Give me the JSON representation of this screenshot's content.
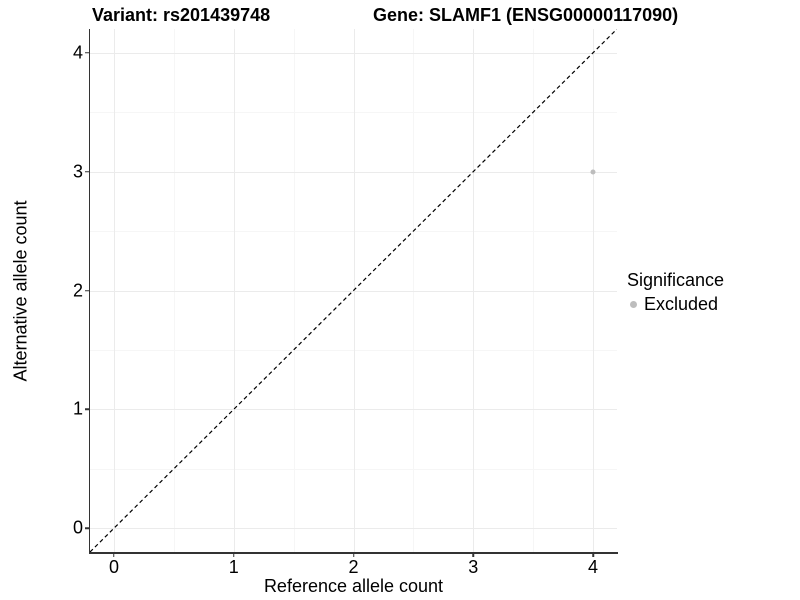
{
  "titles": {
    "variant": "Variant: rs201439748",
    "gene": "Gene: SLAMF1 (ENSG00000117090)"
  },
  "legend": {
    "title": "Significance",
    "items": [
      {
        "label": "Excluded",
        "color": "#bdbdbd"
      }
    ]
  },
  "colors": {
    "background": "#ffffff",
    "axis_line": "#333333",
    "grid_major": "#ebebeb",
    "grid_minor": "#f6f6f6",
    "point_excluded": "#bdbdbd",
    "reference_line": "#000000",
    "text": "#000000"
  },
  "chart_data": {
    "type": "scatter",
    "title": "Variant: rs201439748   Gene: SLAMF1 (ENSG00000117090)",
    "xlabel": "Reference allele count",
    "ylabel": "Alternative allele count",
    "xlim": [
      -0.2,
      4.2
    ],
    "ylim": [
      -0.2,
      4.2
    ],
    "x_ticks": [
      0,
      1,
      2,
      3,
      4
    ],
    "x_tick_labels": [
      "0",
      "1",
      "2",
      "3",
      "4"
    ],
    "y_ticks": [
      0,
      1,
      2,
      3,
      4
    ],
    "y_tick_labels": [
      "4",
      "3",
      "2",
      "1",
      "0"
    ],
    "minor_breaks": [
      0.5,
      1.5,
      2.5,
      3.5
    ],
    "grid": true,
    "legend_position": "right",
    "series": [
      {
        "name": "Excluded",
        "color": "#bdbdbd",
        "points": [
          {
            "x": 4,
            "y": 3
          }
        ]
      }
    ],
    "reference_line": {
      "type": "identity",
      "from": [
        -0.2,
        -0.2
      ],
      "to": [
        4.2,
        4.2
      ],
      "style": "dashed",
      "color": "#000000"
    }
  }
}
